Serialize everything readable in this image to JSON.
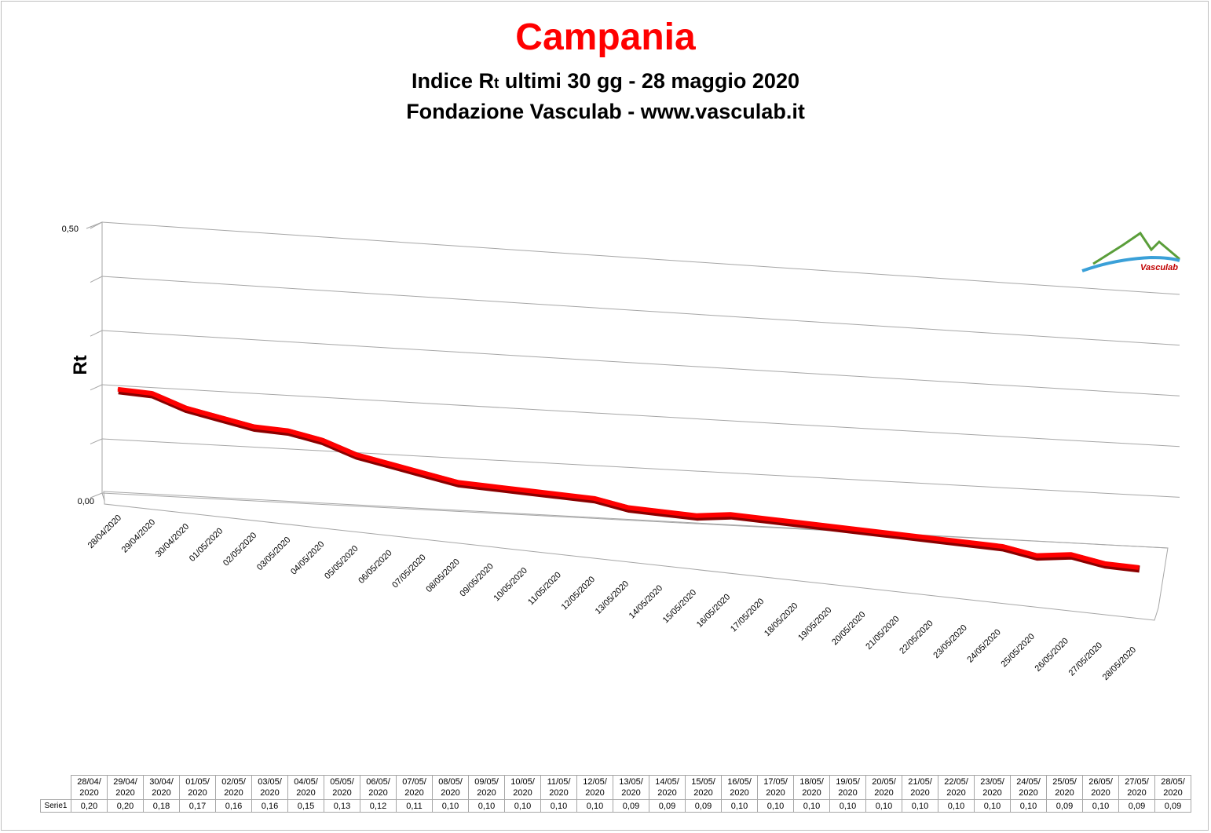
{
  "title": "Campania",
  "subtitle_prefix": "Indice R",
  "subtitle_small": "t",
  "subtitle_suffix": " ultimi 30 gg - 28 maggio 2020",
  "subtitle2": "Fondazione Vasculab - www.vasculab.it",
  "logo_text": "Vasculab",
  "colors": {
    "series": "#ff0000",
    "title": "#ff0000",
    "grid": "#a6a6a6"
  },
  "chart_data": {
    "type": "line",
    "ylabel": "Rt",
    "ylim": [
      0,
      0.5
    ],
    "ytick_labels": [
      "0,50",
      "0,00"
    ],
    "grid": true,
    "categories": [
      "28/04/2020",
      "29/04/2020",
      "30/04/2020",
      "01/05/2020",
      "02/05/2020",
      "03/05/2020",
      "04/05/2020",
      "05/05/2020",
      "06/05/2020",
      "07/05/2020",
      "08/05/2020",
      "09/05/2020",
      "10/05/2020",
      "11/05/2020",
      "12/05/2020",
      "13/05/2020",
      "14/05/2020",
      "15/05/2020",
      "16/05/2020",
      "17/05/2020",
      "18/05/2020",
      "19/05/2020",
      "20/05/2020",
      "21/05/2020",
      "22/05/2020",
      "23/05/2020",
      "24/05/2020",
      "25/05/2020",
      "26/05/2020",
      "27/05/2020",
      "28/05/2020"
    ],
    "series": [
      {
        "name": "Serie1",
        "values": [
          0.2,
          0.2,
          0.18,
          0.17,
          0.16,
          0.16,
          0.15,
          0.13,
          0.12,
          0.11,
          0.1,
          0.1,
          0.1,
          0.1,
          0.1,
          0.09,
          0.09,
          0.09,
          0.1,
          0.1,
          0.1,
          0.1,
          0.1,
          0.1,
          0.1,
          0.1,
          0.1,
          0.09,
          0.1,
          0.09,
          0.09
        ],
        "value_labels": [
          "0,20",
          "0,20",
          "0,18",
          "0,17",
          "0,16",
          "0,16",
          "0,15",
          "0,13",
          "0,12",
          "0,11",
          "0,10",
          "0,10",
          "0,10",
          "0,10",
          "0,10",
          "0,09",
          "0,09",
          "0,09",
          "0,10",
          "0,10",
          "0,10",
          "0,10",
          "0,10",
          "0,10",
          "0,10",
          "0,10",
          "0,10",
          "0,09",
          "0,10",
          "0,09",
          "0,09"
        ]
      }
    ],
    "table_headers": [
      "28/04/\n2020",
      "29/04/\n2020",
      "30/04/\n2020",
      "01/05/\n2020",
      "02/05/\n2020",
      "03/05/\n2020",
      "04/05/\n2020",
      "05/05/\n2020",
      "06/05/\n2020",
      "07/05/\n2020",
      "08/05/\n2020",
      "09/05/\n2020",
      "10/05/\n2020",
      "11/05/\n2020",
      "12/05/\n2020",
      "13/05/\n2020",
      "14/05/\n2020",
      "15/05/\n2020",
      "16/05/\n2020",
      "17/05/\n2020",
      "18/05/\n2020",
      "19/05/\n2020",
      "20/05/\n2020",
      "21/05/\n2020",
      "22/05/\n2020",
      "23/05/\n2020",
      "24/05/\n2020",
      "25/05/\n2020",
      "26/05/\n2020",
      "27/05/\n2020",
      "28/05/\n2020"
    ]
  }
}
